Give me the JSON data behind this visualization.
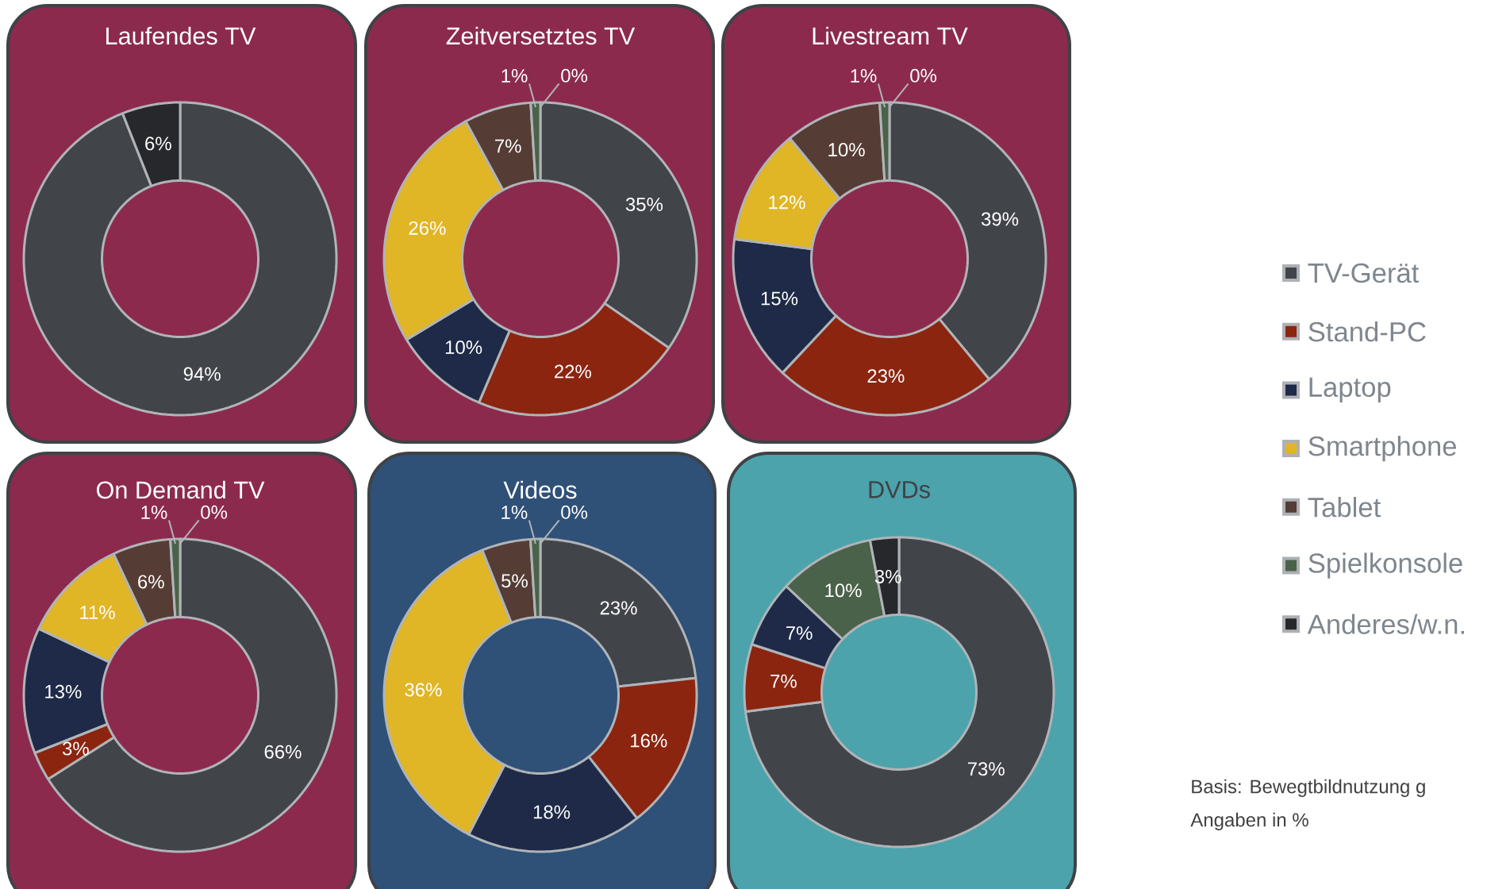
{
  "chart_data": [
    {
      "type": "donut",
      "title": "Laufendes TV",
      "legend": "right",
      "categories": [
        "TV-Gerät",
        "Stand-PC",
        "Laptop",
        "Smartphone",
        "Tablet",
        "Spielkonsole",
        "Anderes/w.n."
      ],
      "values": [
        94,
        0,
        0,
        0,
        0,
        0,
        6
      ],
      "value_labels": [
        "94%",
        null,
        null,
        null,
        null,
        null,
        "6%"
      ],
      "colors": [
        "#414449",
        "#8b2510",
        "#1e2a47",
        "#e0b526",
        "#553d35",
        "#4a6249",
        "#27282c"
      ]
    },
    {
      "type": "donut",
      "title": "Zeitversetztes TV",
      "values": [
        35,
        22,
        10,
        26,
        7,
        1,
        0
      ],
      "value_labels": [
        "35%",
        "22%",
        "10%",
        "26%",
        "7%",
        "1%",
        "0%"
      ],
      "colors": [
        "#414449",
        "#8b2510",
        "#1e2a47",
        "#e0b526",
        "#553d35",
        "#4a6249",
        "#27282c"
      ]
    },
    {
      "type": "donut",
      "title": "Livestream TV",
      "values": [
        39,
        23,
        15,
        12,
        10,
        1,
        0
      ],
      "value_labels": [
        "39%",
        "23%",
        "15%",
        "12%",
        "10%",
        "1%",
        "0%"
      ],
      "colors": [
        "#414449",
        "#8b2510",
        "#1e2a47",
        "#e0b526",
        "#553d35",
        "#4a6249",
        "#27282c"
      ]
    },
    {
      "type": "donut",
      "title": "On Demand TV",
      "values": [
        66,
        3,
        13,
        11,
        6,
        1,
        0
      ],
      "value_labels": [
        "66%",
        "3%",
        "13%",
        "11%",
        "6%",
        "1%",
        "0%"
      ],
      "colors": [
        "#414449",
        "#8b2510",
        "#1e2a47",
        "#e0b526",
        "#553d35",
        "#4a6249",
        "#27282c"
      ]
    },
    {
      "type": "donut",
      "title": "Videos",
      "values": [
        23,
        16,
        18,
        36,
        5,
        1,
        0
      ],
      "value_labels": [
        "23%",
        "16%",
        "18%",
        "36%",
        "5%",
        "1%",
        "0%"
      ],
      "colors": [
        "#414449",
        "#8b2510",
        "#1e2a47",
        "#e0b526",
        "#553d35",
        "#4a6249",
        "#27282c"
      ]
    },
    {
      "type": "donut",
      "title": "DVDs",
      "values": [
        73,
        7,
        7,
        0,
        0,
        10,
        3
      ],
      "value_labels": [
        "73%",
        "7%",
        "7%",
        null,
        null,
        "10%",
        "3%"
      ],
      "colors": [
        "#414449",
        "#8b2510",
        "#1e2a47",
        "#e0b526",
        "#553d35",
        "#4a6249",
        "#27282c"
      ]
    },
    {
      "type": "other",
      "annotations": [
        "Basis: Bewegtbildnutzung g",
        "Angaben in %"
      ]
    }
  ]
}
